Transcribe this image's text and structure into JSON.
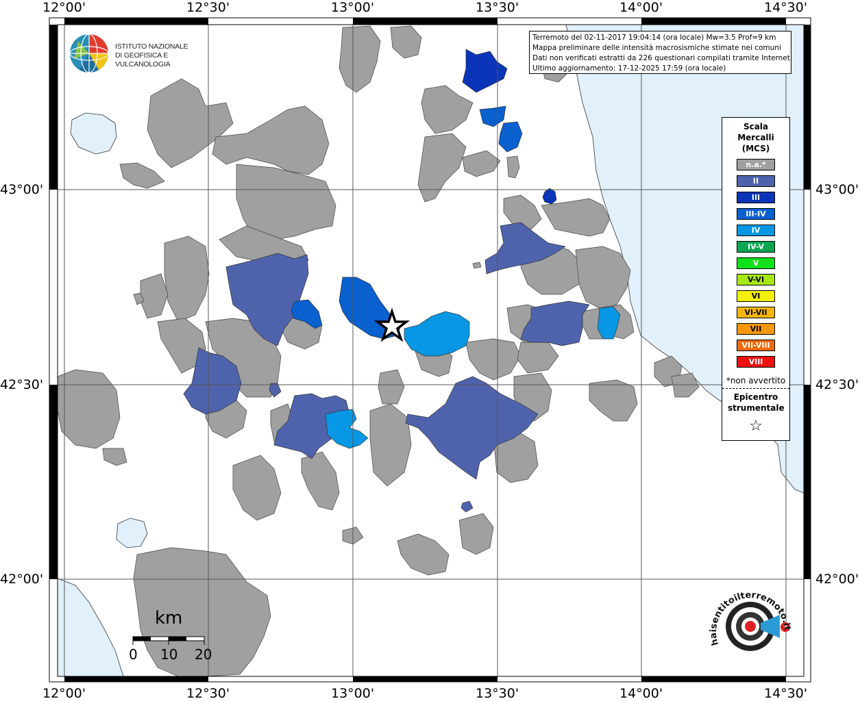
{
  "map": {
    "lon_labels": [
      "12°00'",
      "12°30'",
      "13°00'",
      "13°30'",
      "14°00'",
      "14°30'"
    ],
    "lat_labels": [
      "43°00'",
      "42°30'",
      "42°00'"
    ],
    "water_color": "#e1f0fb",
    "land_color": "#ffffff",
    "no_report_color": "#a0a0a0"
  },
  "logo_ingv": {
    "line1": "ISTITUTO NAZIONALE",
    "line2": "DI GEOFISICA E VULCANOLOGIA"
  },
  "info": {
    "line1": "Terremoto del 02-11-2017 19:04:14 (ora locale) Mw=3.5 Prof=9 km",
    "line2": "Mappa preliminare delle intensità macrosismiche stimate nei comuni",
    "line3": "Dati non verificati estratti da 226 questionari compilati tramite Internet.",
    "line4": "Ultimo aggiornamento: 17-12-2025 17:59 (ora locale)"
  },
  "legend": {
    "title": "Scala Mercalli (MCS)",
    "items": [
      {
        "label": "n.a.*",
        "color": "#a0a0a0"
      },
      {
        "label": "II",
        "color": "#4f63ad"
      },
      {
        "label": "III",
        "color": "#0a35b8"
      },
      {
        "label": "III-IV",
        "color": "#0960cf"
      },
      {
        "label": "IV",
        "color": "#0897e4"
      },
      {
        "label": "IV-V",
        "color": "#0aa650"
      },
      {
        "label": "V",
        "color": "#10e01a"
      },
      {
        "label": "V-VI",
        "color": "#a6e812"
      },
      {
        "label": "VI",
        "color": "#f5ef0c"
      },
      {
        "label": "VI-VII",
        "color": "#f5b60c"
      },
      {
        "label": "VII",
        "color": "#f5980c"
      },
      {
        "label": "VII-VIII",
        "color": "#ef6a0c"
      },
      {
        "label": "VIII",
        "color": "#ee1010"
      }
    ],
    "note": "*non avvertito",
    "epicenter_label": "Epicentro strumentale"
  },
  "scalebar": {
    "unit": "km",
    "ticks": [
      "0",
      "10",
      "20"
    ]
  },
  "hai_logo": {
    "text": "www.haisentitoilterremoto.it ?"
  }
}
